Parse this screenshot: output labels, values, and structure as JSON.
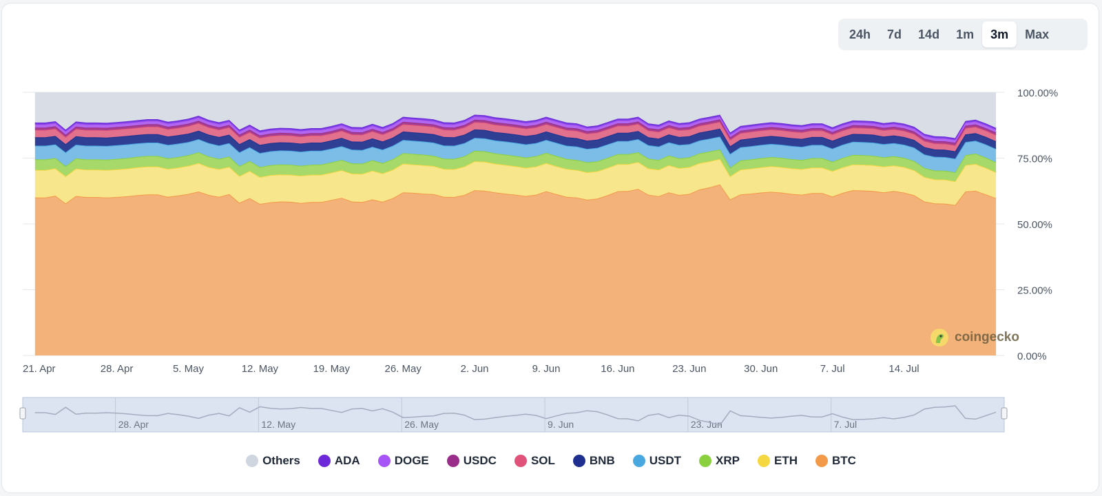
{
  "time_ranges": {
    "options": [
      "24h",
      "7d",
      "14d",
      "1m",
      "3m",
      "Max"
    ],
    "selected": "3m"
  },
  "watermark": {
    "text": "coingecko"
  },
  "chart_data": {
    "type": "area",
    "stacked": true,
    "title": "",
    "xlabel": "",
    "ylabel": "",
    "ylim": [
      0,
      100
    ],
    "y_ticks": [
      "0.00%",
      "25.00%",
      "50.00%",
      "75.00%",
      "100.00%"
    ],
    "x_tick_labels": [
      "21. Apr",
      "28. Apr",
      "5. May",
      "12. May",
      "19. May",
      "26. May",
      "2. Jun",
      "9. Jun",
      "16. Jun",
      "23. Jun",
      "30. Jun",
      "7. Jul",
      "14. Jul"
    ],
    "x": [
      20,
      21,
      22,
      23,
      24,
      25,
      26,
      27,
      28,
      29,
      30,
      31,
      32,
      33,
      34,
      35,
      36,
      37,
      38,
      39,
      40,
      41,
      42,
      43,
      44,
      45,
      46,
      47,
      48,
      49,
      50,
      51,
      52,
      53,
      54,
      55,
      56,
      57,
      58,
      59,
      60,
      61,
      62,
      63,
      64,
      65,
      66,
      67,
      68,
      69,
      70,
      71,
      72,
      73,
      74,
      75,
      76,
      77,
      78,
      79,
      80,
      81,
      82,
      83,
      84,
      85,
      86,
      87,
      88,
      89,
      90,
      91,
      92,
      93,
      94,
      95,
      96,
      97,
      98,
      99,
      100,
      101,
      102,
      103,
      104,
      105,
      106,
      107,
      108,
      109,
      110,
      111,
      112,
      113,
      114
    ],
    "series": [
      {
        "name": "BTC",
        "color": "#f2994a",
        "fill": "#f3b27a",
        "values": [
          60.0,
          60.0,
          60.7,
          57.8,
          60.6,
          60.2,
          60.2,
          60.0,
          60.2,
          60.5,
          60.9,
          61.2,
          61.2,
          60.3,
          60.8,
          61.4,
          62.3,
          61.0,
          60.3,
          61.3,
          58.0,
          59.8,
          57.6,
          58.2,
          58.5,
          58.4,
          57.9,
          58.3,
          58.3,
          59.1,
          59.9,
          58.5,
          58.3,
          59.3,
          58.4,
          59.8,
          62.0,
          61.8,
          61.5,
          61.3,
          60.3,
          60.2,
          61.0,
          62.8,
          62.6,
          62.0,
          61.5,
          61.1,
          60.6,
          61.1,
          62.4,
          61.3,
          60.3,
          60.0,
          59.2,
          59.6,
          60.9,
          62.4,
          62.5,
          63.3,
          61.1,
          60.5,
          62.0,
          61.0,
          61.4,
          63.1,
          63.9,
          65.0,
          59.3,
          61.2,
          61.5,
          61.9,
          62.2,
          61.9,
          61.4,
          61.1,
          61.7,
          61.7,
          60.4,
          61.8,
          62.8,
          62.7,
          62.5,
          62.0,
          62.5,
          61.9,
          60.9,
          58.5,
          57.8,
          57.7,
          57.2,
          62.3,
          62.6,
          61.2,
          59.8
        ]
      },
      {
        "name": "ETH",
        "color": "#f5d742",
        "fill": "#f8e68c",
        "values": [
          10.5,
          10.5,
          10.4,
          10.3,
          10.4,
          10.4,
          10.4,
          10.5,
          10.5,
          10.5,
          10.6,
          10.6,
          10.6,
          10.6,
          10.6,
          10.7,
          10.8,
          10.6,
          10.5,
          10.4,
          10.2,
          10.3,
          10.2,
          10.3,
          10.3,
          10.3,
          10.4,
          10.4,
          10.4,
          10.4,
          10.5,
          10.6,
          10.7,
          10.9,
          10.8,
          10.8,
          10.9,
          10.8,
          10.8,
          10.7,
          10.6,
          10.6,
          10.8,
          11.0,
          11.0,
          10.9,
          10.9,
          10.8,
          10.7,
          10.7,
          10.7,
          10.6,
          10.6,
          10.5,
          10.4,
          10.4,
          10.4,
          10.3,
          10.2,
          10.2,
          10.0,
          10.1,
          10.3,
          10.2,
          10.2,
          10.0,
          9.9,
          9.7,
          8.8,
          9.4,
          9.5,
          9.6,
          9.7,
          9.7,
          9.7,
          9.7,
          9.7,
          9.7,
          9.7,
          9.7,
          9.8,
          9.8,
          9.8,
          9.8,
          9.7,
          9.7,
          9.5,
          9.3,
          9.1,
          9.1,
          9.0,
          10.0,
          10.2,
          10.1,
          9.8
        ]
      },
      {
        "name": "XRP",
        "color": "#8bd13f",
        "fill": "#a7d86a",
        "values": [
          4.0,
          4.0,
          3.9,
          3.8,
          3.9,
          3.9,
          3.9,
          3.9,
          4.0,
          4.0,
          4.0,
          4.0,
          4.0,
          4.0,
          4.0,
          4.0,
          4.1,
          4.0,
          3.9,
          3.9,
          3.7,
          3.8,
          3.8,
          3.8,
          3.8,
          3.8,
          3.8,
          3.8,
          3.9,
          3.9,
          3.9,
          3.9,
          3.9,
          4.0,
          3.9,
          4.0,
          4.0,
          4.0,
          4.0,
          3.9,
          3.9,
          3.9,
          3.9,
          4.0,
          4.0,
          3.9,
          3.9,
          3.9,
          3.9,
          3.9,
          3.9,
          3.9,
          3.8,
          3.8,
          3.8,
          3.8,
          3.8,
          3.8,
          3.8,
          3.7,
          3.7,
          3.7,
          3.7,
          3.7,
          3.7,
          3.7,
          3.7,
          3.6,
          3.3,
          3.5,
          3.5,
          3.5,
          3.5,
          3.5,
          3.5,
          3.5,
          3.6,
          3.6,
          3.5,
          3.6,
          3.6,
          3.6,
          3.6,
          3.5,
          3.5,
          3.5,
          3.5,
          3.4,
          3.4,
          3.4,
          3.4,
          3.8,
          3.9,
          3.9,
          3.8
        ]
      },
      {
        "name": "USDT",
        "color": "#4aa8e0",
        "fill": "#7cbde8",
        "values": [
          5.2,
          5.2,
          5.2,
          5.3,
          5.2,
          5.2,
          5.2,
          5.2,
          5.2,
          5.2,
          5.1,
          5.1,
          5.1,
          5.1,
          5.1,
          5.0,
          5.0,
          5.1,
          5.1,
          5.1,
          5.3,
          5.2,
          5.3,
          5.3,
          5.3,
          5.3,
          5.3,
          5.3,
          5.2,
          5.2,
          5.2,
          5.2,
          5.2,
          5.1,
          5.1,
          5.1,
          5.0,
          5.0,
          5.0,
          5.0,
          5.0,
          5.0,
          5.0,
          4.9,
          4.9,
          4.9,
          5.0,
          5.0,
          5.0,
          5.0,
          4.9,
          5.0,
          5.0,
          5.1,
          5.1,
          5.1,
          5.1,
          5.0,
          5.0,
          5.0,
          5.1,
          5.1,
          5.0,
          5.1,
          5.0,
          4.9,
          4.9,
          4.9,
          5.2,
          5.0,
          5.0,
          5.0,
          5.0,
          5.0,
          5.0,
          5.0,
          5.0,
          5.0,
          5.0,
          5.0,
          5.0,
          5.0,
          5.0,
          5.0,
          5.0,
          5.0,
          5.1,
          5.2,
          5.2,
          5.2,
          5.2,
          5.0,
          4.9,
          5.0,
          5.1
        ]
      },
      {
        "name": "BNB",
        "color": "#1e2f8f",
        "fill": "#2e3f94",
        "values": [
          3.2,
          3.2,
          3.2,
          3.1,
          3.2,
          3.2,
          3.2,
          3.2,
          3.2,
          3.2,
          3.2,
          3.2,
          3.2,
          3.2,
          3.2,
          3.2,
          3.2,
          3.2,
          3.2,
          3.2,
          3.1,
          3.1,
          3.1,
          3.1,
          3.1,
          3.1,
          3.1,
          3.1,
          3.1,
          3.1,
          3.2,
          3.1,
          3.1,
          3.2,
          3.1,
          3.1,
          3.2,
          3.2,
          3.2,
          3.2,
          3.2,
          3.2,
          3.2,
          3.2,
          3.2,
          3.2,
          3.2,
          3.2,
          3.2,
          3.2,
          3.2,
          3.2,
          3.2,
          3.2,
          3.1,
          3.1,
          3.1,
          3.1,
          3.1,
          3.1,
          3.0,
          3.0,
          3.0,
          3.0,
          3.0,
          3.0,
          3.0,
          3.0,
          2.9,
          2.9,
          3.0,
          3.0,
          3.0,
          3.0,
          3.0,
          3.0,
          3.0,
          3.0,
          3.0,
          3.0,
          3.0,
          3.0,
          3.0,
          2.9,
          2.9,
          2.9,
          2.9,
          2.8,
          2.8,
          2.8,
          2.8,
          2.9,
          2.9,
          2.9,
          2.9
        ]
      },
      {
        "name": "SOL",
        "color": "#e0527a",
        "fill": "#e2718e",
        "values": [
          2.8,
          2.8,
          2.8,
          2.7,
          2.8,
          2.8,
          2.8,
          2.8,
          2.8,
          2.8,
          2.8,
          2.9,
          2.9,
          2.8,
          2.8,
          2.9,
          2.9,
          2.8,
          2.8,
          2.8,
          2.7,
          2.7,
          2.7,
          2.7,
          2.7,
          2.7,
          2.7,
          2.7,
          2.7,
          2.7,
          2.7,
          2.7,
          2.7,
          2.7,
          2.7,
          2.7,
          2.8,
          2.8,
          2.8,
          2.8,
          2.8,
          2.8,
          2.8,
          2.8,
          2.8,
          2.8,
          2.8,
          2.8,
          2.8,
          2.8,
          2.8,
          2.8,
          2.8,
          2.8,
          2.7,
          2.7,
          2.7,
          2.7,
          2.7,
          2.7,
          2.6,
          2.6,
          2.6,
          2.6,
          2.6,
          2.6,
          2.6,
          2.6,
          2.5,
          2.5,
          2.5,
          2.5,
          2.5,
          2.5,
          2.5,
          2.5,
          2.5,
          2.5,
          2.4,
          2.4,
          2.4,
          2.4,
          2.4,
          2.4,
          2.4,
          2.4,
          2.3,
          2.3,
          2.3,
          2.3,
          2.3,
          2.4,
          2.4,
          2.4,
          2.4
        ]
      },
      {
        "name": "USDC",
        "color": "#9b2d8a",
        "fill": "#a43e8f",
        "values": [
          0.9,
          0.9,
          0.9,
          0.9,
          0.9,
          0.9,
          0.9,
          0.9,
          0.9,
          0.9,
          0.9,
          0.9,
          0.9,
          0.9,
          0.9,
          0.9,
          0.9,
          0.9,
          0.9,
          0.9,
          0.9,
          0.9,
          0.9,
          0.9,
          0.9,
          0.9,
          0.9,
          0.9,
          0.9,
          0.9,
          0.9,
          0.9,
          0.9,
          0.9,
          0.9,
          0.9,
          0.9,
          0.9,
          0.9,
          0.9,
          0.9,
          0.9,
          0.9,
          0.9,
          0.9,
          0.9,
          0.9,
          0.9,
          0.9,
          0.9,
          0.9,
          0.9,
          0.9,
          0.9,
          0.9,
          0.9,
          0.9,
          0.9,
          0.9,
          0.9,
          0.9,
          0.9,
          0.9,
          0.9,
          0.9,
          0.9,
          0.9,
          0.9,
          0.9,
          0.9,
          0.9,
          0.9,
          0.9,
          0.9,
          0.9,
          0.9,
          0.9,
          0.9,
          0.9,
          0.9,
          0.9,
          0.9,
          0.9,
          0.9,
          0.9,
          0.9,
          0.9,
          0.9,
          0.9,
          0.9,
          0.9,
          0.9,
          0.9,
          0.9,
          0.9
        ]
      },
      {
        "name": "DOGE",
        "color": "#a855f7",
        "fill": "#b267f0",
        "values": [
          1.2,
          1.2,
          1.2,
          1.2,
          1.2,
          1.2,
          1.2,
          1.2,
          1.2,
          1.2,
          1.2,
          1.2,
          1.2,
          1.2,
          1.2,
          1.2,
          1.2,
          1.2,
          1.2,
          1.2,
          1.2,
          1.2,
          1.2,
          1.2,
          1.2,
          1.2,
          1.2,
          1.2,
          1.2,
          1.2,
          1.2,
          1.2,
          1.2,
          1.2,
          1.2,
          1.2,
          1.2,
          1.2,
          1.2,
          1.2,
          1.2,
          1.2,
          1.2,
          1.2,
          1.2,
          1.2,
          1.2,
          1.2,
          1.2,
          1.2,
          1.2,
          1.2,
          1.2,
          1.2,
          1.1,
          1.1,
          1.1,
          1.1,
          1.1,
          1.1,
          1.1,
          1.1,
          1.1,
          1.1,
          1.1,
          1.1,
          1.1,
          1.1,
          1.1,
          1.1,
          1.1,
          1.1,
          1.1,
          1.1,
          1.1,
          1.1,
          1.1,
          1.1,
          1.1,
          1.1,
          1.1,
          1.1,
          1.1,
          1.1,
          1.1,
          1.1,
          1.1,
          1.1,
          1.1,
          1.1,
          1.1,
          1.1,
          1.1,
          1.1,
          1.1
        ]
      },
      {
        "name": "ADA",
        "color": "#6d28d9",
        "fill": "#7a3fe0",
        "values": [
          0.7,
          0.7,
          0.7,
          0.7,
          0.7,
          0.7,
          0.7,
          0.7,
          0.7,
          0.7,
          0.7,
          0.7,
          0.7,
          0.7,
          0.7,
          0.7,
          0.7,
          0.7,
          0.7,
          0.7,
          0.7,
          0.7,
          0.7,
          0.7,
          0.7,
          0.7,
          0.7,
          0.7,
          0.7,
          0.7,
          0.7,
          0.7,
          0.7,
          0.7,
          0.7,
          0.7,
          0.7,
          0.7,
          0.7,
          0.7,
          0.7,
          0.7,
          0.7,
          0.7,
          0.7,
          0.7,
          0.7,
          0.7,
          0.7,
          0.7,
          0.7,
          0.7,
          0.7,
          0.7,
          0.7,
          0.7,
          0.7,
          0.7,
          0.7,
          0.7,
          0.7,
          0.7,
          0.7,
          0.7,
          0.7,
          0.7,
          0.7,
          0.7,
          0.7,
          0.7,
          0.7,
          0.7,
          0.7,
          0.7,
          0.7,
          0.7,
          0.7,
          0.7,
          0.7,
          0.7,
          0.7,
          0.7,
          0.7,
          0.7,
          0.7,
          0.7,
          0.7,
          0.7,
          0.7,
          0.7,
          0.7,
          0.7,
          0.7,
          0.7,
          0.7
        ]
      },
      {
        "name": "Others",
        "color": "#cfd6e0",
        "fill": "#d8dde6",
        "values": [
          11.5,
          11.5,
          11.0,
          14.0,
          11.1,
          11.5,
          11.5,
          11.6,
          11.3,
          11.0,
          10.6,
          10.4,
          10.4,
          11.3,
          10.7,
          10.0,
          8.9,
          10.5,
          11.4,
          10.5,
          14.2,
          12.3,
          14.5,
          13.8,
          13.5,
          13.6,
          14.1,
          13.8,
          13.6,
          12.8,
          11.9,
          13.3,
          13.4,
          12.1,
          13.2,
          11.8,
          9.3,
          9.7,
          10.0,
          10.6,
          11.6,
          11.7,
          10.6,
          8.7,
          9.0,
          9.7,
          10.1,
          10.6,
          11.2,
          10.6,
          9.3,
          10.5,
          11.6,
          11.9,
          13.0,
          12.6,
          11.3,
          9.9,
          10.0,
          9.3,
          11.8,
          12.3,
          10.7,
          11.7,
          11.4,
          9.6,
          8.8,
          7.6,
          14.4,
          11.9,
          11.4,
          10.9,
          10.6,
          11.0,
          11.6,
          11.9,
          11.2,
          11.3,
          12.7,
          11.3,
          10.3,
          10.4,
          10.6,
          11.3,
          10.9,
          11.6,
          13.1,
          15.7,
          16.6,
          16.7,
          17.4,
          11.2,
          10.8,
          12.5,
          14.3
        ]
      }
    ],
    "navigator": {
      "x_tick_labels": [
        "28. Apr",
        "12. May",
        "26. May",
        "9. Jun",
        "23. Jun",
        "7. Jul"
      ]
    },
    "legend_position": "bottom-center"
  }
}
